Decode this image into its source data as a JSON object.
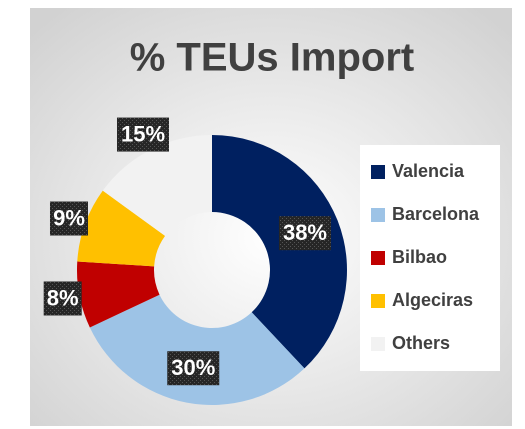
{
  "chart_data": {
    "type": "donut",
    "title": "% TEUs Import",
    "categories": [
      "Valencia",
      "Barcelona",
      "Bilbao",
      "Algeciras",
      "Others"
    ],
    "values": [
      38,
      30,
      8,
      9,
      15
    ],
    "value_labels": [
      "38%",
      "30%",
      "8%",
      "9%",
      "15%"
    ],
    "colors": [
      "#002060",
      "#9dc3e6",
      "#c00000",
      "#ffc000",
      "#f2f2f2"
    ],
    "legend": "right"
  }
}
